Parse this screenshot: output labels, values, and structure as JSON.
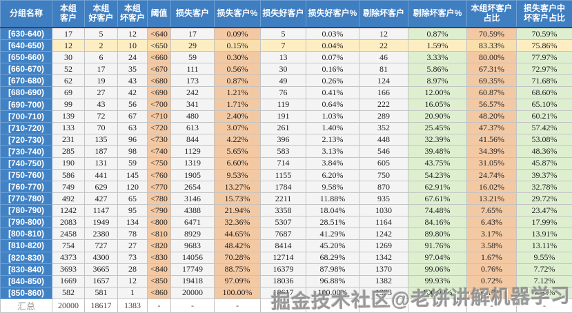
{
  "colors": {
    "header_blue": "#3e7ec1",
    "group_col_blue": "#4182c5",
    "peach_tint": "#f3c9a4",
    "green_tint": "#deefd0",
    "highlight_cream": "#fceec2",
    "header_underline_maroon": "#7b2d26"
  },
  "watermark": "掘金技术社区@老饼讲解机器学习",
  "table": {
    "columns": [
      {
        "label": "分组名称",
        "tint": "plain"
      },
      {
        "label": "本组\n客户",
        "tint": "plain"
      },
      {
        "label": "本组\n好客户",
        "tint": "plain"
      },
      {
        "label": "本组\n坏客户",
        "tint": "plain"
      },
      {
        "label": "阈值",
        "tint": "peach"
      },
      {
        "label": "损失客户",
        "tint": "plain"
      },
      {
        "label": "损失客户%",
        "tint": "peach"
      },
      {
        "label": "损失好客户",
        "tint": "plain"
      },
      {
        "label": "损失好客户%",
        "tint": "plain"
      },
      {
        "label": "剔除坏客户",
        "tint": "plain"
      },
      {
        "label": "剔除坏客户%",
        "tint": "green"
      },
      {
        "label": "本组坏客户\n占比",
        "tint": "peach"
      },
      {
        "label": "损失客户中\n坏客户占比",
        "tint": "green"
      }
    ],
    "highlight_row_index": 1,
    "rows": [
      {
        "group": "[630-640)",
        "values": [
          "17",
          "5",
          "12",
          "<640",
          "17",
          "0.09%",
          "5",
          "0.03%",
          "12",
          "0.87%",
          "70.59%",
          "70.59%"
        ]
      },
      {
        "group": "[640-650)",
        "values": [
          "12",
          "2",
          "10",
          "<650",
          "29",
          "0.15%",
          "7",
          "0.04%",
          "22",
          "1.59%",
          "83.33%",
          "75.86%"
        ]
      },
      {
        "group": "[650-660)",
        "values": [
          "30",
          "6",
          "24",
          "<660",
          "59",
          "0.30%",
          "13",
          "0.07%",
          "46",
          "3.33%",
          "80.00%",
          "77.97%"
        ]
      },
      {
        "group": "[660-670)",
        "values": [
          "52",
          "17",
          "35",
          "<670",
          "111",
          "0.56%",
          "30",
          "0.16%",
          "81",
          "5.86%",
          "67.31%",
          "72.97%"
        ]
      },
      {
        "group": "[670-680)",
        "values": [
          "62",
          "19",
          "43",
          "<680",
          "173",
          "0.87%",
          "49",
          "0.26%",
          "124",
          "8.97%",
          "69.35%",
          "71.68%"
        ]
      },
      {
        "group": "[680-690)",
        "values": [
          "69",
          "27",
          "42",
          "<690",
          "242",
          "1.21%",
          "76",
          "0.41%",
          "166",
          "12.00%",
          "60.87%",
          "68.60%"
        ]
      },
      {
        "group": "[690-700)",
        "values": [
          "99",
          "43",
          "56",
          "<700",
          "341",
          "1.71%",
          "119",
          "0.64%",
          "222",
          "16.05%",
          "56.57%",
          "65.10%"
        ]
      },
      {
        "group": "[700-710)",
        "values": [
          "139",
          "72",
          "67",
          "<710",
          "480",
          "2.40%",
          "191",
          "1.03%",
          "289",
          "20.90%",
          "48.20%",
          "60.21%"
        ]
      },
      {
        "group": "[710-720)",
        "values": [
          "133",
          "70",
          "63",
          "<720",
          "613",
          "3.07%",
          "261",
          "1.40%",
          "352",
          "25.45%",
          "47.37%",
          "57.42%"
        ]
      },
      {
        "group": "[720-730)",
        "values": [
          "231",
          "135",
          "96",
          "<730",
          "844",
          "4.22%",
          "396",
          "2.13%",
          "448",
          "32.39%",
          "41.56%",
          "53.08%"
        ]
      },
      {
        "group": "[730-740)",
        "values": [
          "285",
          "187",
          "98",
          "<740",
          "1129",
          "5.65%",
          "583",
          "3.13%",
          "546",
          "39.48%",
          "34.39%",
          "48.36%"
        ]
      },
      {
        "group": "[740-750)",
        "values": [
          "190",
          "131",
          "59",
          "<750",
          "1319",
          "6.60%",
          "714",
          "3.84%",
          "605",
          "43.75%",
          "31.05%",
          "45.87%"
        ]
      },
      {
        "group": "[750-760)",
        "values": [
          "586",
          "441",
          "145",
          "<760",
          "1905",
          "9.53%",
          "1155",
          "6.20%",
          "750",
          "54.23%",
          "24.74%",
          "39.37%"
        ]
      },
      {
        "group": "[760-770)",
        "values": [
          "749",
          "629",
          "120",
          "<770",
          "2654",
          "13.27%",
          "1784",
          "9.58%",
          "870",
          "62.91%",
          "16.02%",
          "32.78%"
        ]
      },
      {
        "group": "[770-780)",
        "values": [
          "492",
          "427",
          "65",
          "<780",
          "3146",
          "15.73%",
          "2211",
          "11.88%",
          "935",
          "67.61%",
          "13.21%",
          "29.72%"
        ]
      },
      {
        "group": "[780-790)",
        "values": [
          "1242",
          "1147",
          "95",
          "<790",
          "4388",
          "21.94%",
          "3358",
          "18.04%",
          "1030",
          "74.48%",
          "7.65%",
          "23.47%"
        ]
      },
      {
        "group": "[790-800)",
        "values": [
          "2083",
          "1949",
          "134",
          "<800",
          "6471",
          "32.36%",
          "5307",
          "28.51%",
          "1164",
          "84.16%",
          "6.43%",
          "17.99%"
        ]
      },
      {
        "group": "[800-810)",
        "values": [
          "2458",
          "2380",
          "78",
          "<810",
          "8929",
          "44.65%",
          "7687",
          "41.29%",
          "1242",
          "89.80%",
          "3.17%",
          "13.91%"
        ]
      },
      {
        "group": "[810-820)",
        "values": [
          "754",
          "727",
          "27",
          "<820",
          "9683",
          "48.42%",
          "8414",
          "45.20%",
          "1269",
          "91.76%",
          "3.58%",
          "13.11%"
        ]
      },
      {
        "group": "[820-830)",
        "values": [
          "4373",
          "4300",
          "73",
          "<830",
          "14056",
          "70.28%",
          "12714",
          "68.29%",
          "1342",
          "97.04%",
          "1.67%",
          "9.55%"
        ]
      },
      {
        "group": "[830-840)",
        "values": [
          "3693",
          "3665",
          "28",
          "<840",
          "17749",
          "88.75%",
          "16379",
          "87.98%",
          "1370",
          "99.06%",
          "0.76%",
          "7.72%"
        ]
      },
      {
        "group": "[840-850)",
        "values": [
          "1669",
          "1657",
          "12",
          "<850",
          "19418",
          "97.09%",
          "18036",
          "96.88%",
          "1382",
          "99.93%",
          "0.72%",
          "7.12%"
        ]
      },
      {
        "group": "[850-860)",
        "values": [
          "582",
          "581",
          "1",
          "<860",
          "20000",
          "100.00%",
          "18617",
          "100.00%",
          "1383",
          "100.00%",
          "0.17%",
          "6.92%"
        ]
      }
    ],
    "footer": {
      "label": "汇总",
      "values": [
        "20000",
        "18617",
        "1383",
        "-",
        "-",
        "-",
        "-",
        "-",
        "-",
        "-",
        "-",
        "-"
      ]
    }
  }
}
